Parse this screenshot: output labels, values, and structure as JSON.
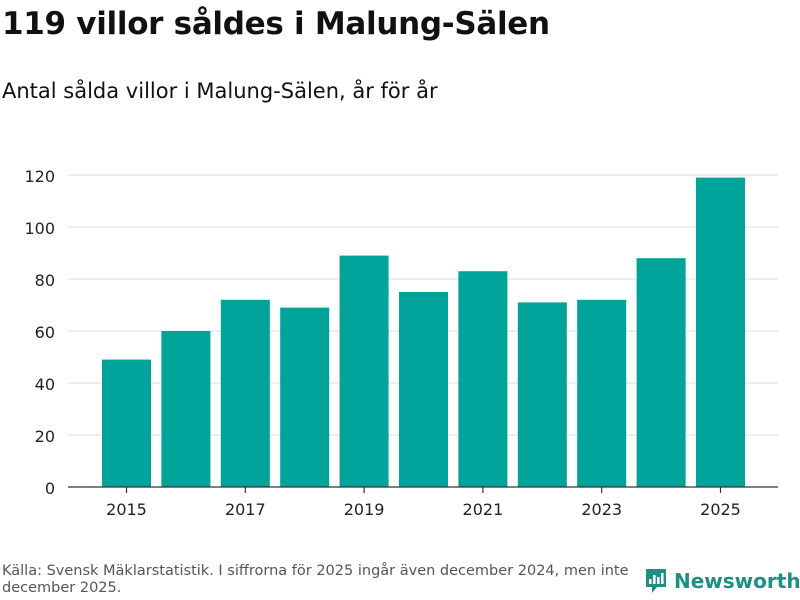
{
  "header": {
    "title": "119 villor såldes i Malung-Sälen",
    "subtitle": "Antal sålda villor i Malung-Sälen, år för år"
  },
  "footer": {
    "source": "Källa: Svensk Mäklarstatistik. I siffrorna för 2025 ingår även december 2024, men inte december 2025.",
    "logo_text": "Newsworthy",
    "logo_icon": "bar-chart-icon"
  },
  "colors": {
    "bar": "#00a39a",
    "grid": "#dddddd",
    "axis": "#333333",
    "logo": "#1f8f86"
  },
  "chart_data": {
    "type": "bar",
    "title": "Antal sålda villor i Malung-Sälen, år för år",
    "xlabel": "",
    "ylabel": "",
    "categories": [
      "2015",
      "2016",
      "2017",
      "2018",
      "2019",
      "2020",
      "2021",
      "2022",
      "2023",
      "2024",
      "2025"
    ],
    "values": [
      49,
      60,
      72,
      69,
      89,
      75,
      83,
      71,
      72,
      88,
      119
    ],
    "x_tick_labels": [
      "2015",
      "2017",
      "2019",
      "2021",
      "2023",
      "2025"
    ],
    "y_ticks": [
      0,
      20,
      40,
      60,
      80,
      100,
      120
    ],
    "ylim": [
      0,
      125
    ],
    "grid": true,
    "legend": "none"
  }
}
